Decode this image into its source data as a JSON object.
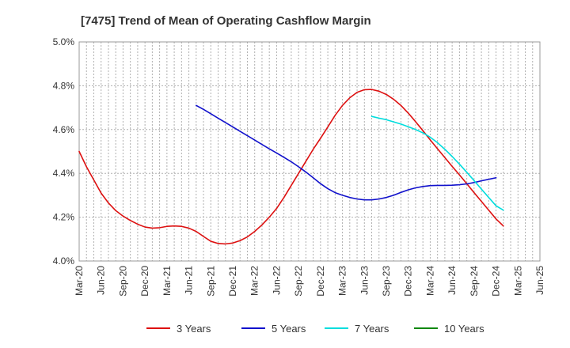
{
  "chart_data": {
    "type": "line",
    "title": "[7475]  Trend of Mean of Operating Cashflow Margin",
    "xlabel": "",
    "ylabel": "",
    "x_tick_labels": [
      "Mar-20",
      "Jun-20",
      "Sep-20",
      "Dec-20",
      "Mar-21",
      "Jun-21",
      "Sep-21",
      "Dec-21",
      "Mar-22",
      "Jun-22",
      "Sep-22",
      "Dec-22",
      "Mar-23",
      "Jun-23",
      "Sep-23",
      "Dec-23",
      "Mar-24",
      "Jun-24",
      "Sep-24",
      "Dec-24",
      "Mar-25",
      "Jun-25"
    ],
    "y_tick_labels": [
      "4.0%",
      "4.2%",
      "4.4%",
      "4.6%",
      "4.8%",
      "5.0%"
    ],
    "ylim": [
      4.0,
      5.0
    ],
    "grid": true,
    "legend_position": "bottom",
    "series": [
      {
        "name": "3 Years",
        "color": "#dd1111",
        "points": [
          [
            "Mar-20",
            4.5
          ],
          [
            "Apr-20",
            4.43
          ],
          [
            "May-20",
            4.37
          ],
          [
            "Jun-20",
            4.31
          ],
          [
            "Jul-20",
            4.265
          ],
          [
            "Aug-20",
            4.23
          ],
          [
            "Sep-20",
            4.205
          ],
          [
            "Oct-20",
            4.185
          ],
          [
            "Nov-20",
            4.168
          ],
          [
            "Dec-20",
            4.155
          ],
          [
            "Jan-21",
            4.15
          ],
          [
            "Feb-21",
            4.152
          ],
          [
            "Mar-21",
            4.158
          ],
          [
            "Apr-21",
            4.16
          ],
          [
            "May-21",
            4.158
          ],
          [
            "Jun-21",
            4.15
          ],
          [
            "Jul-21",
            4.135
          ],
          [
            "Aug-21",
            4.112
          ],
          [
            "Sep-21",
            4.09
          ],
          [
            "Oct-21",
            4.08
          ],
          [
            "Nov-21",
            4.078
          ],
          [
            "Dec-21",
            4.082
          ],
          [
            "Jan-22",
            4.093
          ],
          [
            "Feb-22",
            4.11
          ],
          [
            "Mar-22",
            4.135
          ],
          [
            "Apr-22",
            4.165
          ],
          [
            "May-22",
            4.2
          ],
          [
            "Jun-22",
            4.24
          ],
          [
            "Jul-22",
            4.29
          ],
          [
            "Aug-22",
            4.345
          ],
          [
            "Sep-22",
            4.4
          ],
          [
            "Oct-22",
            4.455
          ],
          [
            "Nov-22",
            4.51
          ],
          [
            "Dec-22",
            4.56
          ],
          [
            "Jan-23",
            4.612
          ],
          [
            "Feb-23",
            4.665
          ],
          [
            "Mar-23",
            4.71
          ],
          [
            "Apr-23",
            4.745
          ],
          [
            "May-23",
            4.77
          ],
          [
            "Jun-23",
            4.782
          ],
          [
            "Jul-23",
            4.783
          ],
          [
            "Aug-23",
            4.775
          ],
          [
            "Sep-23",
            4.76
          ],
          [
            "Oct-23",
            4.738
          ],
          [
            "Nov-23",
            4.71
          ],
          [
            "Dec-23",
            4.675
          ],
          [
            "Jan-24",
            4.636
          ],
          [
            "Feb-24",
            4.595
          ],
          [
            "Mar-24",
            4.553
          ],
          [
            "Apr-24",
            4.512
          ],
          [
            "May-24",
            4.472
          ],
          [
            "Jun-24",
            4.432
          ],
          [
            "Jul-24",
            4.393
          ],
          [
            "Aug-24",
            4.353
          ],
          [
            "Sep-24",
            4.312
          ],
          [
            "Oct-24",
            4.272
          ],
          [
            "Nov-24",
            4.232
          ],
          [
            "Dec-24",
            4.192
          ],
          [
            "Jan-25",
            4.16
          ]
        ]
      },
      {
        "name": "5 Years",
        "color": "#1111cc",
        "points": [
          [
            "Jul-21",
            4.71
          ],
          [
            "Aug-21",
            4.692
          ],
          [
            "Sep-21",
            4.672
          ],
          [
            "Oct-21",
            4.652
          ],
          [
            "Nov-21",
            4.632
          ],
          [
            "Dec-21",
            4.612
          ],
          [
            "Jan-22",
            4.592
          ],
          [
            "Feb-22",
            4.572
          ],
          [
            "Mar-22",
            4.552
          ],
          [
            "Apr-22",
            4.532
          ],
          [
            "May-22",
            4.512
          ],
          [
            "Jun-22",
            4.493
          ],
          [
            "Jul-22",
            4.473
          ],
          [
            "Aug-22",
            4.453
          ],
          [
            "Sep-22",
            4.43
          ],
          [
            "Oct-22",
            4.406
          ],
          [
            "Nov-22",
            4.38
          ],
          [
            "Dec-22",
            4.353
          ],
          [
            "Jan-23",
            4.33
          ],
          [
            "Feb-23",
            4.312
          ],
          [
            "Mar-23",
            4.3
          ],
          [
            "Apr-23",
            4.29
          ],
          [
            "May-23",
            4.283
          ],
          [
            "Jun-23",
            4.279
          ],
          [
            "Jul-23",
            4.279
          ],
          [
            "Aug-23",
            4.283
          ],
          [
            "Sep-23",
            4.29
          ],
          [
            "Oct-23",
            4.3
          ],
          [
            "Nov-23",
            4.313
          ],
          [
            "Dec-23",
            4.325
          ],
          [
            "Jan-24",
            4.334
          ],
          [
            "Feb-24",
            4.34
          ],
          [
            "Mar-24",
            4.344
          ],
          [
            "Apr-24",
            4.345
          ],
          [
            "May-24",
            4.345
          ],
          [
            "Jun-24",
            4.346
          ],
          [
            "Jul-24",
            4.348
          ],
          [
            "Aug-24",
            4.352
          ],
          [
            "Sep-24",
            4.358
          ],
          [
            "Oct-24",
            4.366
          ],
          [
            "Nov-24",
            4.373
          ],
          [
            "Dec-24",
            4.38
          ]
        ]
      },
      {
        "name": "7 Years",
        "color": "#00dddd",
        "points": [
          [
            "Jul-23",
            4.66
          ],
          [
            "Aug-23",
            4.652
          ],
          [
            "Sep-23",
            4.645
          ],
          [
            "Oct-23",
            4.635
          ],
          [
            "Nov-23",
            4.625
          ],
          [
            "Dec-23",
            4.613
          ],
          [
            "Jan-24",
            4.6
          ],
          [
            "Feb-24",
            4.585
          ],
          [
            "Mar-24",
            4.565
          ],
          [
            "Apr-24",
            4.54
          ],
          [
            "May-24",
            4.51
          ],
          [
            "Jun-24",
            4.477
          ],
          [
            "Jul-24",
            4.442
          ],
          [
            "Aug-24",
            4.405
          ],
          [
            "Sep-24",
            4.367
          ],
          [
            "Oct-24",
            4.328
          ],
          [
            "Nov-24",
            4.29
          ],
          [
            "Dec-24",
            4.252
          ],
          [
            "Jan-25",
            4.232
          ]
        ]
      },
      {
        "name": "10 Years",
        "color": "#118811",
        "points": []
      }
    ]
  }
}
